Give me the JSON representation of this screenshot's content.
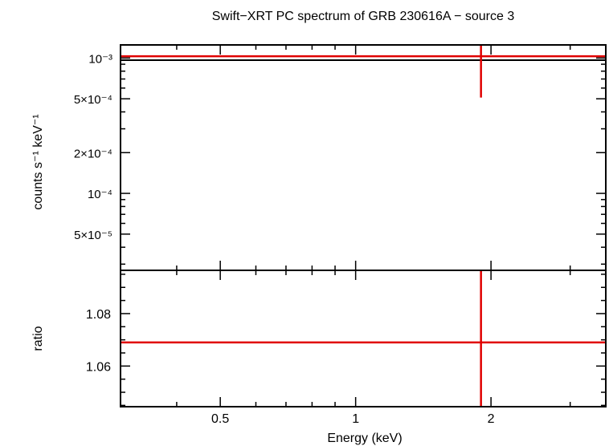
{
  "chart_data": [
    {
      "type": "scatter",
      "title": "Swift−XRT PC spectrum of GRB 230616A − source 3",
      "ylabel": "counts s⁻¹ keV⁻¹",
      "xscale": "log",
      "yscale": "log",
      "xlim": [
        0.3,
        3.6
      ],
      "ylim": [
        2.7e-05,
        0.00125
      ],
      "yticks": [
        {
          "value": 0.001,
          "label": "10⁻³"
        },
        {
          "value": 0.0005,
          "label": "5×10⁻⁴"
        },
        {
          "value": 0.0002,
          "label": "2×10⁻⁴"
        },
        {
          "value": 0.0001,
          "label": "10⁻⁴"
        },
        {
          "value": 5e-05,
          "label": "5×10⁻⁵"
        }
      ],
      "series": [
        {
          "type": "errorbar",
          "color": "#e00000",
          "points": [
            {
              "x": 1.9,
              "xerr": [
                1.6,
                1.7
              ],
              "y": 0.00103,
              "yerr": [
                0.00052,
                0.0006
              ]
            }
          ]
        },
        {
          "type": "step-line",
          "color": "#000000",
          "x": [
            0.3,
            3.6
          ],
          "y": [
            0.000965,
            0.000965
          ]
        }
      ]
    },
    {
      "type": "scatter",
      "xlabel": "Energy (keV)",
      "ylabel": "ratio",
      "xscale": "log",
      "xlim": [
        0.3,
        3.6
      ],
      "ylim": [
        1.0445,
        1.0965
      ],
      "xticks": [
        {
          "value": 0.5,
          "label": "0.5"
        },
        {
          "value": 1,
          "label": "1"
        },
        {
          "value": 2,
          "label": "2"
        }
      ],
      "yticks": [
        {
          "value": 1.08,
          "label": "1.08"
        },
        {
          "value": 1.06,
          "label": "1.06"
        }
      ],
      "series": [
        {
          "type": "errorbar",
          "color": "#e00000",
          "points": [
            {
              "x": 1.9,
              "xerr": [
                1.6,
                1.7
              ],
              "y": 1.069,
              "yerr": [
                0.05,
                0.05
              ]
            }
          ]
        }
      ]
    }
  ]
}
